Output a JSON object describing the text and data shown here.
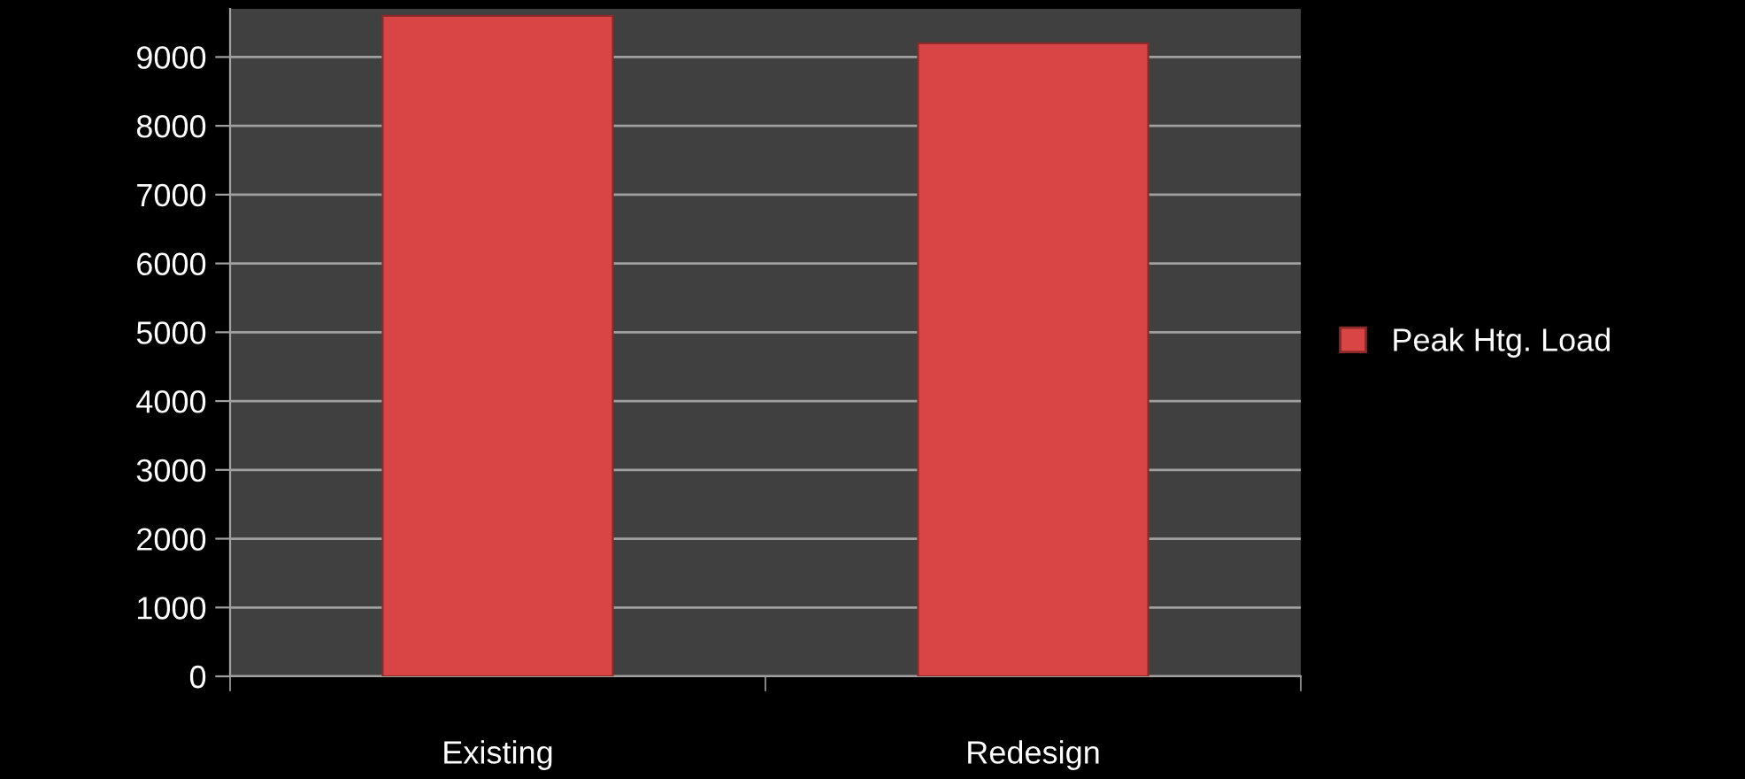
{
  "chart_data": {
    "type": "bar",
    "categories": [
      "Existing",
      "Redesign"
    ],
    "series": [
      {
        "name": "Peak Htg. Load",
        "color": "#d94545",
        "values": [
          9600,
          9200
        ]
      }
    ],
    "ylim": [
      0,
      9700
    ],
    "yticks": [
      0,
      1000,
      2000,
      3000,
      4000,
      5000,
      6000,
      7000,
      8000,
      9000
    ],
    "grid": "y",
    "legend": "right"
  }
}
